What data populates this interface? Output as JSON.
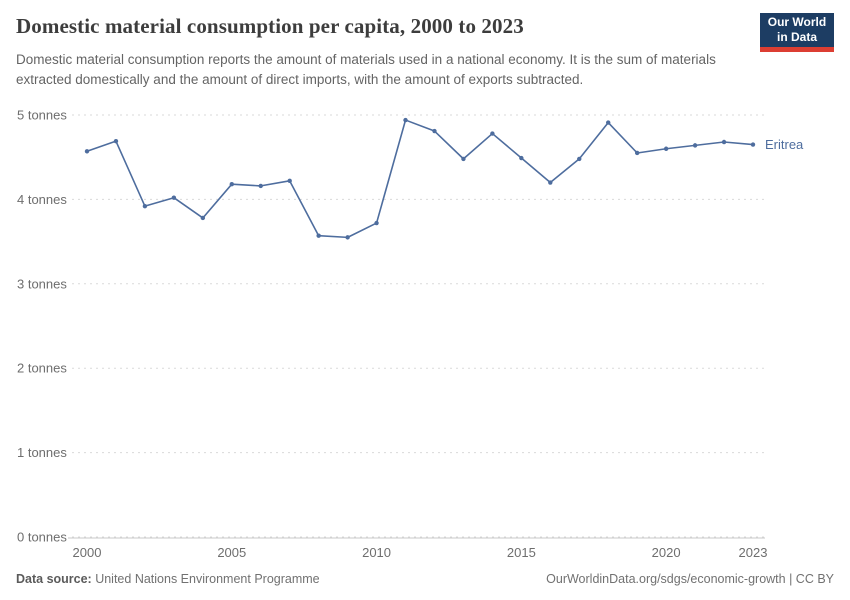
{
  "header": {
    "logo": {
      "line1": "Our World",
      "line2": "in Data"
    }
  },
  "subtitle": "Domestic material consumption reports the amount of materials used in a national economy. It is the sum of materials extracted domestically and the amount of direct imports, with the amount of exports subtracted.",
  "chart_data": {
    "type": "line",
    "title": "Domestic material consumption per capita, 2000 to 2023",
    "x": [
      2000,
      2001,
      2002,
      2003,
      2004,
      2005,
      2006,
      2007,
      2008,
      2009,
      2010,
      2011,
      2012,
      2013,
      2014,
      2015,
      2016,
      2017,
      2018,
      2019,
      2020,
      2021,
      2022,
      2023
    ],
    "series": [
      {
        "name": "Eritrea",
        "color": "#4e6d9e",
        "values": [
          4.57,
          4.69,
          3.92,
          4.02,
          3.78,
          4.18,
          4.16,
          4.22,
          3.57,
          3.55,
          3.72,
          4.94,
          4.81,
          4.48,
          4.78,
          4.49,
          4.2,
          4.48,
          4.91,
          4.55,
          4.6,
          4.64,
          4.68,
          4.65
        ]
      }
    ],
    "xlabel": "",
    "ylabel": "tonnes",
    "ylim": [
      0,
      5
    ],
    "yticks": [
      0,
      1,
      2,
      3,
      4,
      5
    ],
    "ytick_suffix": " tonnes",
    "xticks": [
      2000,
      2005,
      2010,
      2015,
      2020,
      2023
    ],
    "grid": "horizontal-dotted",
    "legend": "end-of-line-label",
    "grid_color": "#dadada",
    "axis_line_color": "#c8c8c8",
    "tick_label_color": "#6e6e6e"
  },
  "footer": {
    "datasource_label": "Data source:",
    "datasource_value": " United Nations Environment Programme",
    "credit": "OurWorldinData.org/sdgs/economic-growth | CC BY"
  }
}
